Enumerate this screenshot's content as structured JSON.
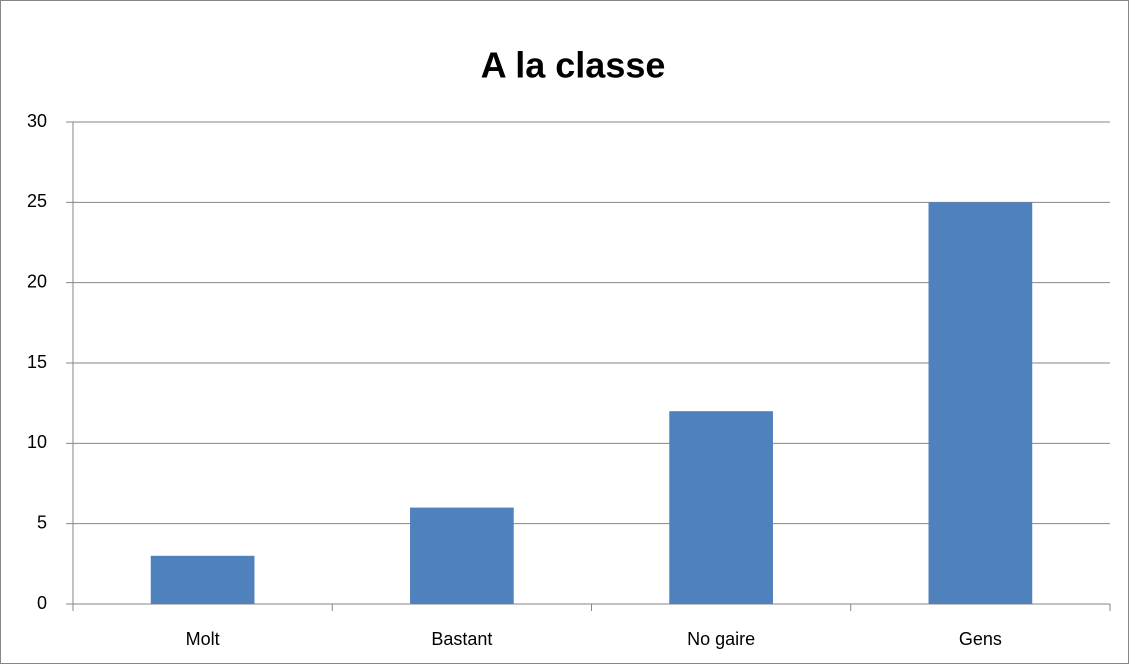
{
  "chart_data": {
    "type": "bar",
    "title": "A la classe",
    "categories": [
      "Molt",
      "Bastant",
      "No gaire",
      "Gens"
    ],
    "values": [
      3,
      6,
      12,
      25
    ],
    "color": "#4f81bd",
    "ylim": [
      0,
      30
    ],
    "yticks": [
      0,
      5,
      10,
      15,
      20,
      25,
      30
    ],
    "grid": true
  }
}
